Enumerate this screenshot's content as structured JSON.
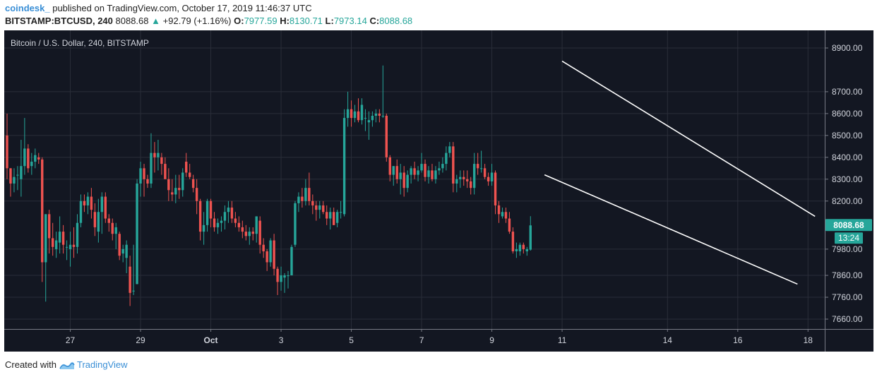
{
  "header": {
    "publisher": "coindesk_",
    "published_text": "published on TradingView.com, October 17, 2019 11:46:37 UTC",
    "symbol": "BITSTAMP:BTCUSD, 240",
    "last": "8088.68",
    "change": "+92.79 (+1.16%)",
    "o_label": "O:",
    "o_val": "7977.59",
    "h_label": "H:",
    "h_val": "8130.71",
    "l_label": "L:",
    "l_val": "7973.14",
    "c_label": "C:",
    "c_val": "8088.68"
  },
  "chart": {
    "legend": "Bitcoin / U.S. Dollar, 240, BITSTAMP",
    "price_tag": "8088.68",
    "time_tag": "13:24"
  },
  "footer": {
    "created_with": "Created with",
    "brand": "TradingView"
  },
  "colors": {
    "background": "#131722",
    "up": "#26a69a",
    "down": "#ef5350",
    "grid": "#2a2e39",
    "trendline": "#ffffff",
    "tag": "#26a69a"
  },
  "chart_data": {
    "type": "candlestick",
    "title": "Bitcoin / U.S. Dollar, 240, BITSTAMP",
    "ylim": [
      7600,
      8950
    ],
    "y_ticks": [
      7660,
      7760,
      7860,
      7980,
      8088.68,
      8200,
      8300,
      8400,
      8500,
      8600,
      8700,
      8900
    ],
    "y_tick_labels": [
      "7660.00",
      "7760.00",
      "7860.00",
      "7980.00",
      "8088.68",
      "8200.00",
      "8300.00",
      "8400.00",
      "8500.00",
      "8600.00",
      "8700.00",
      "8900.00"
    ],
    "x_tick_labels": [
      "27",
      "29",
      "Oct",
      "3",
      "5",
      "7",
      "9",
      "11",
      "14",
      "16",
      "18"
    ],
    "x_tick_index": [
      18,
      38,
      58,
      78,
      98,
      118,
      138,
      158,
      188,
      208,
      228
    ],
    "candles": [
      {
        "o": 8500,
        "h": 8600,
        "l": 8300,
        "c": 8350
      },
      {
        "o": 8350,
        "h": 8350,
        "l": 8220,
        "c": 8280
      },
      {
        "o": 8280,
        "h": 8350,
        "l": 8240,
        "c": 8310
      },
      {
        "o": 8320,
        "h": 8360,
        "l": 8250,
        "c": 8320
      },
      {
        "o": 8300,
        "h": 8480,
        "l": 8220,
        "c": 8360
      },
      {
        "o": 8360,
        "h": 8580,
        "l": 8320,
        "c": 8440
      },
      {
        "o": 8440,
        "h": 8460,
        "l": 8330,
        "c": 8350
      },
      {
        "o": 8360,
        "h": 8420,
        "l": 8320,
        "c": 8380
      },
      {
        "o": 8380,
        "h": 8440,
        "l": 8350,
        "c": 8410
      },
      {
        "o": 8400,
        "h": 8420,
        "l": 8370,
        "c": 8390
      },
      {
        "o": 8390,
        "h": 8400,
        "l": 7830,
        "c": 7920
      },
      {
        "o": 7920,
        "h": 8140,
        "l": 7740,
        "c": 8140
      },
      {
        "o": 8140,
        "h": 8160,
        "l": 7960,
        "c": 8030
      },
      {
        "o": 8030,
        "h": 8100,
        "l": 7950,
        "c": 7990
      },
      {
        "o": 7980,
        "h": 8060,
        "l": 7940,
        "c": 8020
      },
      {
        "o": 8010,
        "h": 8130,
        "l": 7960,
        "c": 8060
      },
      {
        "o": 8060,
        "h": 8090,
        "l": 7960,
        "c": 8000
      },
      {
        "o": 7990,
        "h": 8020,
        "l": 7930,
        "c": 7990
      },
      {
        "o": 7980,
        "h": 8060,
        "l": 7900,
        "c": 8000
      },
      {
        "o": 8000,
        "h": 8080,
        "l": 7940,
        "c": 7990
      },
      {
        "o": 7990,
        "h": 8140,
        "l": 7960,
        "c": 8100
      },
      {
        "o": 8100,
        "h": 8230,
        "l": 8080,
        "c": 8200
      },
      {
        "o": 8200,
        "h": 8230,
        "l": 8150,
        "c": 8180
      },
      {
        "o": 8180,
        "h": 8240,
        "l": 8140,
        "c": 8220
      },
      {
        "o": 8220,
        "h": 8260,
        "l": 8120,
        "c": 8160
      },
      {
        "o": 8150,
        "h": 8190,
        "l": 8040,
        "c": 8080
      },
      {
        "o": 8060,
        "h": 8210,
        "l": 8010,
        "c": 8150
      },
      {
        "o": 8150,
        "h": 8240,
        "l": 8050,
        "c": 8220
      },
      {
        "o": 8220,
        "h": 8240,
        "l": 8100,
        "c": 8120
      },
      {
        "o": 8120,
        "h": 8140,
        "l": 8060,
        "c": 8100
      },
      {
        "o": 8100,
        "h": 8120,
        "l": 8020,
        "c": 8050
      },
      {
        "o": 8050,
        "h": 8100,
        "l": 7980,
        "c": 8080
      },
      {
        "o": 8050,
        "h": 8060,
        "l": 7930,
        "c": 7950
      },
      {
        "o": 7960,
        "h": 8000,
        "l": 7920,
        "c": 7980
      },
      {
        "o": 7940,
        "h": 8020,
        "l": 7870,
        "c": 8000
      },
      {
        "o": 7900,
        "h": 7950,
        "l": 7720,
        "c": 7780
      },
      {
        "o": 7790,
        "h": 8000,
        "l": 7770,
        "c": 7790
      },
      {
        "o": 7820,
        "h": 8300,
        "l": 7820,
        "c": 8280
      },
      {
        "o": 8280,
        "h": 8380,
        "l": 8220,
        "c": 8350
      },
      {
        "o": 8350,
        "h": 8370,
        "l": 8220,
        "c": 8300
      },
      {
        "o": 8300,
        "h": 8320,
        "l": 8260,
        "c": 8280
      },
      {
        "o": 8280,
        "h": 8510,
        "l": 8260,
        "c": 8420
      },
      {
        "o": 8420,
        "h": 8470,
        "l": 8330,
        "c": 8400
      },
      {
        "o": 8400,
        "h": 8480,
        "l": 8340,
        "c": 8420
      },
      {
        "o": 8400,
        "h": 8420,
        "l": 8320,
        "c": 8370
      },
      {
        "o": 8370,
        "h": 8400,
        "l": 8300,
        "c": 8300
      },
      {
        "o": 8300,
        "h": 8350,
        "l": 8200,
        "c": 8250
      },
      {
        "o": 8240,
        "h": 8300,
        "l": 8200,
        "c": 8230
      },
      {
        "o": 8230,
        "h": 8320,
        "l": 8190,
        "c": 8260
      },
      {
        "o": 8260,
        "h": 8320,
        "l": 8210,
        "c": 8250
      },
      {
        "o": 8250,
        "h": 8350,
        "l": 8220,
        "c": 8330
      },
      {
        "o": 8380,
        "h": 8420,
        "l": 8310,
        "c": 8330
      },
      {
        "o": 8330,
        "h": 8370,
        "l": 8300,
        "c": 8310
      },
      {
        "o": 8300,
        "h": 8320,
        "l": 8240,
        "c": 8260
      },
      {
        "o": 8260,
        "h": 8300,
        "l": 8140,
        "c": 8200
      },
      {
        "o": 8200,
        "h": 8210,
        "l": 8020,
        "c": 8060
      },
      {
        "o": 8060,
        "h": 8150,
        "l": 8000,
        "c": 8090
      },
      {
        "o": 8090,
        "h": 8210,
        "l": 8060,
        "c": 8200
      },
      {
        "o": 8200,
        "h": 8210,
        "l": 8080,
        "c": 8120
      },
      {
        "o": 8120,
        "h": 8150,
        "l": 8060,
        "c": 8080
      },
      {
        "o": 8080,
        "h": 8120,
        "l": 8050,
        "c": 8100
      },
      {
        "o": 8100,
        "h": 8130,
        "l": 8060,
        "c": 8110
      },
      {
        "o": 8110,
        "h": 8180,
        "l": 8070,
        "c": 8150
      },
      {
        "o": 8150,
        "h": 8200,
        "l": 8100,
        "c": 8170
      },
      {
        "o": 8170,
        "h": 8200,
        "l": 8100,
        "c": 8120
      },
      {
        "o": 8120,
        "h": 8150,
        "l": 8080,
        "c": 8100
      },
      {
        "o": 8100,
        "h": 8130,
        "l": 8060,
        "c": 8080
      },
      {
        "o": 8080,
        "h": 8110,
        "l": 8030,
        "c": 8060
      },
      {
        "o": 8060,
        "h": 8090,
        "l": 8020,
        "c": 8040
      },
      {
        "o": 8040,
        "h": 8080,
        "l": 8000,
        "c": 8060
      },
      {
        "o": 8060,
        "h": 8080,
        "l": 8020,
        "c": 8050
      },
      {
        "o": 8050,
        "h": 8130,
        "l": 8010,
        "c": 8130
      },
      {
        "o": 8110,
        "h": 8130,
        "l": 7960,
        "c": 8000
      },
      {
        "o": 8000,
        "h": 8030,
        "l": 7940,
        "c": 7970
      },
      {
        "o": 7970,
        "h": 7980,
        "l": 7880,
        "c": 7920
      },
      {
        "o": 7920,
        "h": 8030,
        "l": 7900,
        "c": 8020
      },
      {
        "o": 8020,
        "h": 8050,
        "l": 7860,
        "c": 7890
      },
      {
        "o": 7890,
        "h": 7900,
        "l": 7770,
        "c": 7830
      },
      {
        "o": 7830,
        "h": 7900,
        "l": 7790,
        "c": 7860
      },
      {
        "o": 7850,
        "h": 7870,
        "l": 7780,
        "c": 7860
      },
      {
        "o": 7860,
        "h": 7880,
        "l": 7800,
        "c": 7860
      },
      {
        "o": 7860,
        "h": 8000,
        "l": 7860,
        "c": 7990
      },
      {
        "o": 8000,
        "h": 8200,
        "l": 7990,
        "c": 8190
      },
      {
        "o": 8190,
        "h": 8240,
        "l": 8150,
        "c": 8220
      },
      {
        "o": 8220,
        "h": 8260,
        "l": 8170,
        "c": 8200
      },
      {
        "o": 8200,
        "h": 8300,
        "l": 8180,
        "c": 8260
      },
      {
        "o": 8260,
        "h": 8330,
        "l": 8180,
        "c": 8200
      },
      {
        "o": 8200,
        "h": 8230,
        "l": 8140,
        "c": 8180
      },
      {
        "o": 8180,
        "h": 8200,
        "l": 8110,
        "c": 8160
      },
      {
        "o": 8160,
        "h": 8200,
        "l": 8120,
        "c": 8180
      },
      {
        "o": 8180,
        "h": 8200,
        "l": 8140,
        "c": 8150
      },
      {
        "o": 8150,
        "h": 8180,
        "l": 8090,
        "c": 8120
      },
      {
        "o": 8120,
        "h": 8170,
        "l": 8070,
        "c": 8150
      },
      {
        "o": 8150,
        "h": 8170,
        "l": 8090,
        "c": 8090
      },
      {
        "o": 8100,
        "h": 8160,
        "l": 8080,
        "c": 8150
      },
      {
        "o": 8150,
        "h": 8200,
        "l": 8120,
        "c": 8150
      },
      {
        "o": 8140,
        "h": 8620,
        "l": 8130,
        "c": 8580
      },
      {
        "o": 8580,
        "h": 8700,
        "l": 8540,
        "c": 8620
      },
      {
        "o": 8620,
        "h": 8660,
        "l": 8540,
        "c": 8580
      },
      {
        "o": 8580,
        "h": 8640,
        "l": 8560,
        "c": 8610
      },
      {
        "o": 8610,
        "h": 8670,
        "l": 8560,
        "c": 8570
      },
      {
        "o": 8570,
        "h": 8670,
        "l": 8550,
        "c": 8640
      },
      {
        "o": 8580,
        "h": 8620,
        "l": 8520,
        "c": 8580
      },
      {
        "o": 8560,
        "h": 8610,
        "l": 8480,
        "c": 8570
      },
      {
        "o": 8570,
        "h": 8610,
        "l": 8540,
        "c": 8590
      },
      {
        "o": 8590,
        "h": 8620,
        "l": 8560,
        "c": 8600
      },
      {
        "o": 8600,
        "h": 8620,
        "l": 8560,
        "c": 8590
      },
      {
        "o": 8590,
        "h": 8820,
        "l": 8580,
        "c": 8590
      },
      {
        "o": 8590,
        "h": 8600,
        "l": 8380,
        "c": 8400
      },
      {
        "o": 8400,
        "h": 8410,
        "l": 8290,
        "c": 8320
      },
      {
        "o": 8320,
        "h": 8360,
        "l": 8270,
        "c": 8360
      },
      {
        "o": 8360,
        "h": 8390,
        "l": 8280,
        "c": 8300
      },
      {
        "o": 8300,
        "h": 8370,
        "l": 8230,
        "c": 8330
      },
      {
        "o": 8330,
        "h": 8360,
        "l": 8220,
        "c": 8260
      },
      {
        "o": 8260,
        "h": 8340,
        "l": 8240,
        "c": 8320
      },
      {
        "o": 8320,
        "h": 8360,
        "l": 8280,
        "c": 8350
      },
      {
        "o": 8350,
        "h": 8380,
        "l": 8300,
        "c": 8320
      },
      {
        "o": 8320,
        "h": 8360,
        "l": 8290,
        "c": 8340
      },
      {
        "o": 8340,
        "h": 8420,
        "l": 8330,
        "c": 8370
      },
      {
        "o": 8370,
        "h": 8390,
        "l": 8290,
        "c": 8310
      },
      {
        "o": 8310,
        "h": 8360,
        "l": 8280,
        "c": 8340
      },
      {
        "o": 8340,
        "h": 8370,
        "l": 8290,
        "c": 8300
      },
      {
        "o": 8300,
        "h": 8360,
        "l": 8280,
        "c": 8340
      },
      {
        "o": 8340,
        "h": 8380,
        "l": 8320,
        "c": 8350
      },
      {
        "o": 8350,
        "h": 8400,
        "l": 8330,
        "c": 8370
      },
      {
        "o": 8370,
        "h": 8450,
        "l": 8340,
        "c": 8420
      },
      {
        "o": 8420,
        "h": 8470,
        "l": 8400,
        "c": 8450
      },
      {
        "o": 8450,
        "h": 8470,
        "l": 8240,
        "c": 8280
      },
      {
        "o": 8280,
        "h": 8320,
        "l": 8240,
        "c": 8300
      },
      {
        "o": 8300,
        "h": 8340,
        "l": 8260,
        "c": 8310
      },
      {
        "o": 8310,
        "h": 8340,
        "l": 8270,
        "c": 8300
      },
      {
        "o": 8300,
        "h": 8340,
        "l": 8260,
        "c": 8290
      },
      {
        "o": 8290,
        "h": 8310,
        "l": 8230,
        "c": 8260
      },
      {
        "o": 8260,
        "h": 8420,
        "l": 8230,
        "c": 8370
      },
      {
        "o": 8370,
        "h": 8420,
        "l": 8320,
        "c": 8350
      },
      {
        "o": 8350,
        "h": 8430,
        "l": 8330,
        "c": 8350
      },
      {
        "o": 8350,
        "h": 8370,
        "l": 8300,
        "c": 8310
      },
      {
        "o": 8310,
        "h": 8330,
        "l": 8270,
        "c": 8290
      },
      {
        "o": 8290,
        "h": 8370,
        "l": 8270,
        "c": 8330
      },
      {
        "o": 8330,
        "h": 8340,
        "l": 8140,
        "c": 8180
      },
      {
        "o": 8180,
        "h": 8200,
        "l": 8100,
        "c": 8140
      },
      {
        "o": 8130,
        "h": 8170,
        "l": 8120,
        "c": 8150
      },
      {
        "o": 8150,
        "h": 8170,
        "l": 8100,
        "c": 8120
      },
      {
        "o": 8120,
        "h": 8150,
        "l": 8050,
        "c": 8060
      },
      {
        "o": 8060,
        "h": 8080,
        "l": 7960,
        "c": 7970
      },
      {
        "o": 7970,
        "h": 8010,
        "l": 7940,
        "c": 7980
      },
      {
        "o": 7970,
        "h": 8010,
        "l": 7950,
        "c": 8000
      },
      {
        "o": 8000,
        "h": 8010,
        "l": 7960,
        "c": 7980
      },
      {
        "o": 7970,
        "h": 7990,
        "l": 7950,
        "c": 7980
      },
      {
        "o": 7977.59,
        "h": 8130.71,
        "l": 7973.14,
        "c": 8088.68
      }
    ],
    "trendlines": [
      {
        "from_index": 158,
        "from_price": 8840,
        "to_index": 230,
        "to_price": 8130
      },
      {
        "from_index": 153,
        "from_price": 8320,
        "to_index": 225,
        "to_price": 7820
      }
    ]
  }
}
